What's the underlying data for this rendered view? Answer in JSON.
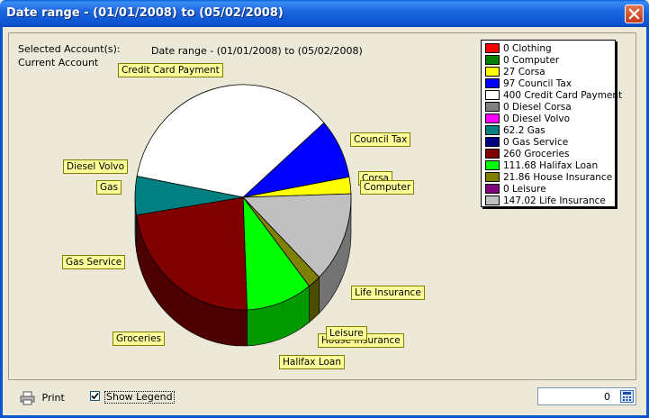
{
  "window": {
    "title": "Date range - (01/01/2008) to (05/02/2008)"
  },
  "selection": {
    "label": "Selected Account(s):",
    "account": "Current Account"
  },
  "bottom": {
    "print_label": "Print",
    "show_legend_label": "Show Legend",
    "show_legend_checked": true,
    "number_value": "0"
  },
  "colors": {
    "title_bar": "#0b54d0",
    "label_bg": "#ffff99"
  },
  "chart_data": {
    "type": "pie",
    "title": "Date range - (01/01/2008) to (05/02/2008)",
    "series": [
      {
        "name": "Clothing",
        "value": 0,
        "color": "#ff0000"
      },
      {
        "name": "Computer",
        "value": 0,
        "color": "#008000"
      },
      {
        "name": "Corsa",
        "value": 27,
        "color": "#ffff00"
      },
      {
        "name": "Council Tax",
        "value": 97,
        "color": "#0000ff"
      },
      {
        "name": "Credit Card Payment",
        "value": 400,
        "color": "#ffffff"
      },
      {
        "name": "Diesel Corsa",
        "value": 0,
        "color": "#808080"
      },
      {
        "name": "Diesel Volvo",
        "value": 0,
        "color": "#ff00ff"
      },
      {
        "name": "Gas",
        "value": 62.2,
        "color": "#008080"
      },
      {
        "name": "Gas Service",
        "value": 0,
        "color": "#000080"
      },
      {
        "name": "Groceries",
        "value": 260,
        "color": "#800000"
      },
      {
        "name": "Halifax Loan",
        "value": 111.68,
        "color": "#00ff00"
      },
      {
        "name": "House Insurance",
        "value": 21.86,
        "color": "#808000"
      },
      {
        "name": "Leisure",
        "value": 0,
        "color": "#800080"
      },
      {
        "name": "Life Insurance",
        "value": 147.02,
        "color": "#c0c0c0"
      }
    ],
    "legend_entries": [
      "0 Clothing",
      "0 Computer",
      "27 Corsa",
      "97 Council Tax",
      "400 Credit Card Payment",
      "0 Diesel Corsa",
      "0 Diesel Volvo",
      "62.2 Gas",
      "0 Gas Service",
      "260 Groceries",
      "111.68 Halifax Loan",
      "21.86 House Insurance",
      "0 Leisure",
      "147.02 Life Insurance"
    ],
    "slice_labels": [
      "Credit Card Payment",
      "Council Tax",
      "Corsa",
      "Computer",
      "Diesel Volvo",
      "Gas",
      "Gas Service",
      "Groceries",
      "Halifax Loan",
      "House Insurance",
      "Leisure",
      "Life Insurance"
    ],
    "legend_position": "right",
    "style": "3d"
  }
}
